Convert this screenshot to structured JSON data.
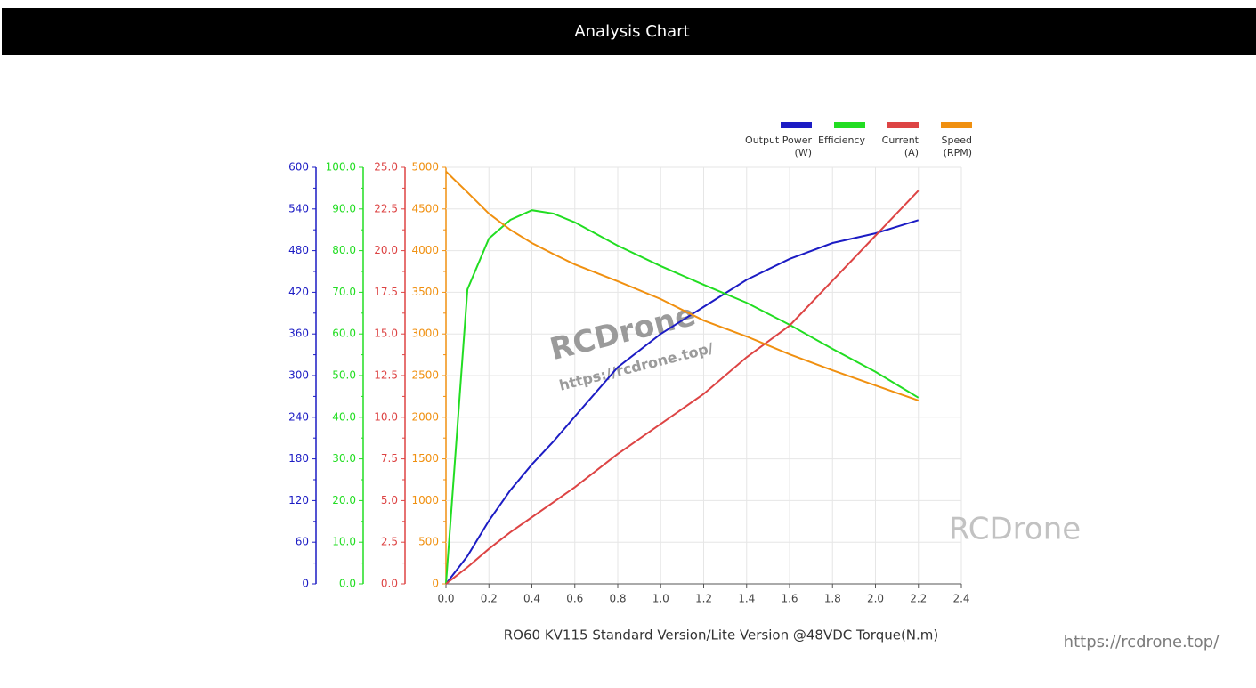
{
  "header": {
    "title": "Analysis Chart"
  },
  "chart_data": {
    "type": "line",
    "x_label": "RO60 KV115 Standard Version/Lite Version @48VDC Torque(N.m)",
    "x": [
      0,
      0.1,
      0.2,
      0.3,
      0.4,
      0.5,
      0.6,
      0.8,
      1.0,
      1.2,
      1.4,
      1.6,
      1.8,
      2.0,
      2.2
    ],
    "xlim": [
      0,
      2.4
    ],
    "xticks": [
      {
        "value": 0,
        "label": "0.0"
      },
      0.2,
      0.4,
      0.6,
      0.8,
      {
        "value": 1,
        "label": "1.0"
      },
      1.2,
      1.4,
      1.6,
      1.8,
      {
        "value": 2,
        "label": "2.0"
      },
      2.2,
      2.4
    ],
    "ylim": [
      0,
      600
    ],
    "yticks": [
      0,
      60,
      120,
      180,
      240,
      300,
      360,
      420,
      480,
      540,
      600
    ],
    "y2lim": [
      0,
      100
    ],
    "y2ticks": [
      {
        "value": 0,
        "label": "0.0"
      },
      {
        "value": 10,
        "label": "10.0"
      },
      {
        "value": 20,
        "label": "20.0"
      },
      {
        "value": 30,
        "label": "30.0"
      },
      {
        "value": 40,
        "label": "40.0"
      },
      {
        "value": 50,
        "label": "50.0"
      },
      {
        "value": 60,
        "label": "60.0"
      },
      {
        "value": 70,
        "label": "70.0"
      },
      {
        "value": 80,
        "label": "80.0"
      },
      {
        "value": 90,
        "label": "90.0"
      },
      {
        "value": 100,
        "label": "100.0"
      }
    ],
    "y3lim": [
      0,
      25
    ],
    "y3ticks": [
      {
        "value": 0,
        "label": "0.0"
      },
      2.5,
      {
        "value": 5,
        "label": "5.0"
      },
      7.5,
      {
        "value": 10,
        "label": "10.0"
      },
      12.5,
      {
        "value": 15,
        "label": "15.0"
      },
      17.5,
      {
        "value": 20,
        "label": "20.0"
      },
      22.5,
      {
        "value": 25,
        "label": "25.0"
      }
    ],
    "y4lim": [
      0,
      5000
    ],
    "y4ticks": [
      0,
      500,
      1000,
      1500,
      2000,
      2500,
      3000,
      3500,
      4000,
      4500,
      5000
    ],
    "grid": true,
    "legend": "top-right",
    "series": [
      {
        "name": "Output Power\n(W)",
        "color": "#1c1cc4",
        "axis": "y",
        "values": [
          0,
          40,
          91,
          135,
          172,
          205,
          241,
          312,
          360,
          399,
          438,
          468,
          491,
          505,
          524
        ]
      },
      {
        "name": "Efficiency",
        "color": "#22dd22",
        "axis": "y2",
        "values": [
          0,
          70.7,
          82.9,
          87.4,
          89.7,
          88.9,
          86.8,
          81.2,
          76.3,
          71.8,
          67.5,
          62.2,
          56.4,
          50.9,
          44.7
        ]
      },
      {
        "name": "Current\n(A)",
        "color": "#dd4444",
        "axis": "y3",
        "values": [
          0,
          1.0,
          2.1,
          3.1,
          4.0,
          4.9,
          5.8,
          7.8,
          9.6,
          11.4,
          13.6,
          15.5,
          18.2,
          20.9,
          23.6
        ]
      },
      {
        "name": "Speed\n(RPM)",
        "color": "#f09010",
        "axis": "y4",
        "values": [
          4950,
          4700,
          4444,
          4250,
          4092,
          3960,
          3835,
          3632,
          3419,
          3162,
          2970,
          2756,
          2564,
          2382,
          2201
        ]
      }
    ],
    "watermarks": [
      "RCDrone",
      "https://rcdrone.top/",
      "RCDrone",
      "https://rcdrone.top/"
    ]
  }
}
